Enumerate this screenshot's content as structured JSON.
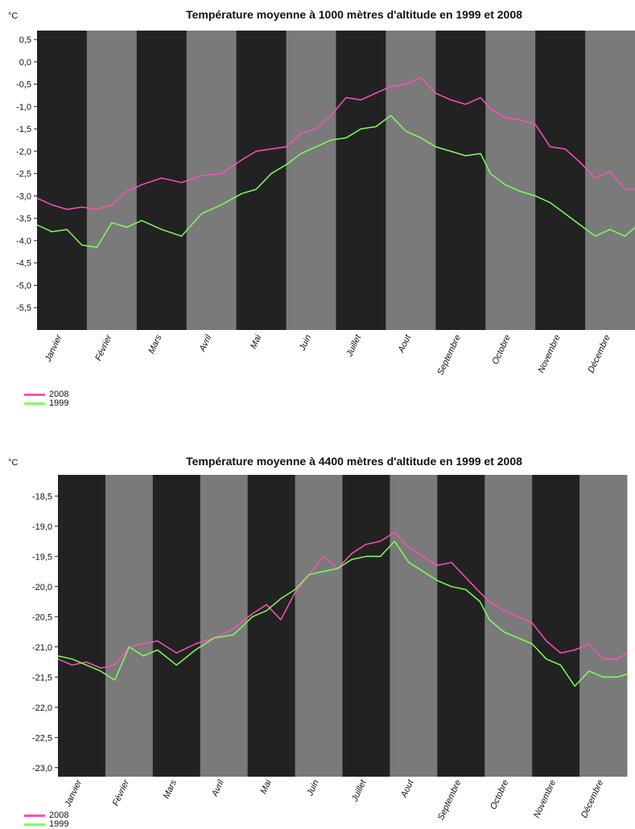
{
  "colors": {
    "band_dark": "#222222",
    "band_light": "#7a7a7a",
    "series_2008": "#ff4fb8",
    "series_1999": "#7dff5a"
  },
  "chart_data": [
    {
      "type": "line",
      "title": "Température moyenne à 1000 mètres d'altitude en 1999 et 2008",
      "unit_label": "°C",
      "ylim": [
        -6.0,
        0.7
      ],
      "yticks": [
        "0,5",
        "0,0",
        "-0,5",
        "-1,0",
        "-1,5",
        "-2,0",
        "-2,5",
        "-3,0",
        "-3,5",
        "-4,0",
        "-4,5",
        "-5,0",
        "-5,5"
      ],
      "ytick_values": [
        0.5,
        0.0,
        -0.5,
        -1.0,
        -1.5,
        -2.0,
        -2.5,
        -3.0,
        -3.5,
        -4.0,
        -4.5,
        -5.0,
        -5.5
      ],
      "categories": [
        "Janvier",
        "Février",
        "Mars",
        "Avril",
        "Mai",
        "Juin",
        "Juillet",
        "Aout",
        "Septembre",
        "Octobre",
        "Novembre",
        "Décembre"
      ],
      "legend": [
        "2008",
        "1999"
      ],
      "series": [
        {
          "name": "2008",
          "color": "#ff4fb8",
          "x": [
            0,
            0.3,
            0.6,
            0.9,
            1.2,
            1.5,
            1.8,
            2.1,
            2.5,
            2.9,
            3.3,
            3.7,
            4.1,
            4.4,
            4.7,
            5.0,
            5.3,
            5.6,
            5.9,
            6.2,
            6.5,
            6.8,
            7.1,
            7.4,
            7.7,
            8.0,
            8.3,
            8.6,
            8.9,
            9.1,
            9.4,
            9.7,
            10.0,
            10.3,
            10.6,
            10.9,
            11.2,
            11.5,
            11.8,
            12.0
          ],
          "y": [
            -3.05,
            -3.2,
            -3.3,
            -3.25,
            -3.3,
            -3.2,
            -2.9,
            -2.75,
            -2.6,
            -2.7,
            -2.55,
            -2.5,
            -2.2,
            -2.0,
            -1.95,
            -1.9,
            -1.6,
            -1.5,
            -1.2,
            -0.8,
            -0.85,
            -0.7,
            -0.55,
            -0.5,
            -0.35,
            -0.7,
            -0.85,
            -0.95,
            -0.8,
            -1.05,
            -1.25,
            -1.3,
            -1.4,
            -1.9,
            -1.95,
            -2.25,
            -2.6,
            -2.45,
            -2.85,
            -2.85
          ]
        },
        {
          "name": "1999",
          "color": "#7dff5a",
          "x": [
            0,
            0.3,
            0.6,
            0.9,
            1.2,
            1.5,
            1.8,
            2.1,
            2.5,
            2.9,
            3.3,
            3.7,
            4.1,
            4.4,
            4.7,
            5.0,
            5.3,
            5.6,
            5.9,
            6.2,
            6.5,
            6.8,
            7.1,
            7.4,
            7.7,
            8.0,
            8.3,
            8.6,
            8.9,
            9.1,
            9.4,
            9.7,
            10.0,
            10.3,
            10.6,
            10.9,
            11.2,
            11.5,
            11.8,
            12.0
          ],
          "y": [
            -3.65,
            -3.8,
            -3.75,
            -4.1,
            -4.15,
            -3.6,
            -3.7,
            -3.55,
            -3.75,
            -3.9,
            -3.4,
            -3.2,
            -2.95,
            -2.85,
            -2.5,
            -2.3,
            -2.05,
            -1.9,
            -1.75,
            -1.7,
            -1.5,
            -1.45,
            -1.2,
            -1.55,
            -1.7,
            -1.9,
            -2.0,
            -2.1,
            -2.05,
            -2.5,
            -2.75,
            -2.9,
            -3.0,
            -3.15,
            -3.4,
            -3.65,
            -3.9,
            -3.75,
            -3.9,
            -3.7
          ]
        }
      ]
    },
    {
      "type": "line",
      "title": "Température moyenne à 4400 mètres d'altitude en 1999 et 2008",
      "unit_label": "°C",
      "ylim": [
        -23.15,
        -18.15
      ],
      "yticks": [
        "-18,5",
        "-19,0",
        "-19,5",
        "-20,0",
        "-20,5",
        "-21,0",
        "-21,5",
        "-22,0",
        "-22,5",
        "-23,0"
      ],
      "ytick_values": [
        -18.5,
        -19.0,
        -19.5,
        -20.0,
        -20.5,
        -21.0,
        -21.5,
        -22.0,
        -22.5,
        -23.0
      ],
      "categories": [
        "Janvier",
        "Février",
        "Mars",
        "Avril",
        "Mai",
        "Juin",
        "Juillet",
        "Aout",
        "Septembre",
        "Octobre",
        "Novembre",
        "Décembre"
      ],
      "legend": [
        "2008",
        "1999"
      ],
      "series": [
        {
          "name": "2008",
          "color": "#ff4fb8",
          "x": [
            0,
            0.3,
            0.6,
            0.9,
            1.2,
            1.5,
            1.8,
            2.1,
            2.5,
            2.9,
            3.3,
            3.7,
            4.1,
            4.4,
            4.7,
            5.0,
            5.3,
            5.6,
            5.9,
            6.2,
            6.5,
            6.8,
            7.1,
            7.4,
            7.7,
            8.0,
            8.3,
            8.6,
            8.9,
            9.1,
            9.4,
            9.7,
            10.0,
            10.3,
            10.6,
            10.9,
            11.2,
            11.5,
            11.8,
            12.0
          ],
          "y": [
            -21.2,
            -21.3,
            -21.25,
            -21.35,
            -21.3,
            -21.0,
            -20.95,
            -20.9,
            -21.1,
            -20.95,
            -20.85,
            -20.7,
            -20.45,
            -20.3,
            -20.55,
            -20.1,
            -19.8,
            -19.5,
            -19.7,
            -19.45,
            -19.3,
            -19.25,
            -19.1,
            -19.35,
            -19.5,
            -19.65,
            -19.6,
            -19.85,
            -20.1,
            -20.25,
            -20.4,
            -20.5,
            -20.6,
            -20.9,
            -21.1,
            -21.05,
            -20.95,
            -21.2,
            -21.2,
            -21.1
          ]
        },
        {
          "name": "1999",
          "color": "#7dff5a",
          "x": [
            0,
            0.3,
            0.6,
            0.9,
            1.2,
            1.5,
            1.8,
            2.1,
            2.5,
            2.9,
            3.3,
            3.7,
            4.1,
            4.4,
            4.7,
            5.0,
            5.3,
            5.6,
            5.9,
            6.2,
            6.5,
            6.8,
            7.1,
            7.4,
            7.7,
            8.0,
            8.3,
            8.6,
            8.9,
            9.1,
            9.4,
            9.7,
            10.0,
            10.3,
            10.6,
            10.9,
            11.2,
            11.5,
            11.8,
            12.0
          ],
          "y": [
            -21.15,
            -21.2,
            -21.3,
            -21.4,
            -21.55,
            -21.0,
            -21.15,
            -21.05,
            -21.3,
            -21.05,
            -20.85,
            -20.8,
            -20.5,
            -20.4,
            -20.2,
            -20.05,
            -19.8,
            -19.75,
            -19.7,
            -19.55,
            -19.5,
            -19.5,
            -19.25,
            -19.6,
            -19.75,
            -19.9,
            -20.0,
            -20.05,
            -20.25,
            -20.55,
            -20.75,
            -20.85,
            -20.95,
            -21.2,
            -21.3,
            -21.65,
            -21.4,
            -21.5,
            -21.5,
            -21.45
          ]
        }
      ]
    }
  ]
}
